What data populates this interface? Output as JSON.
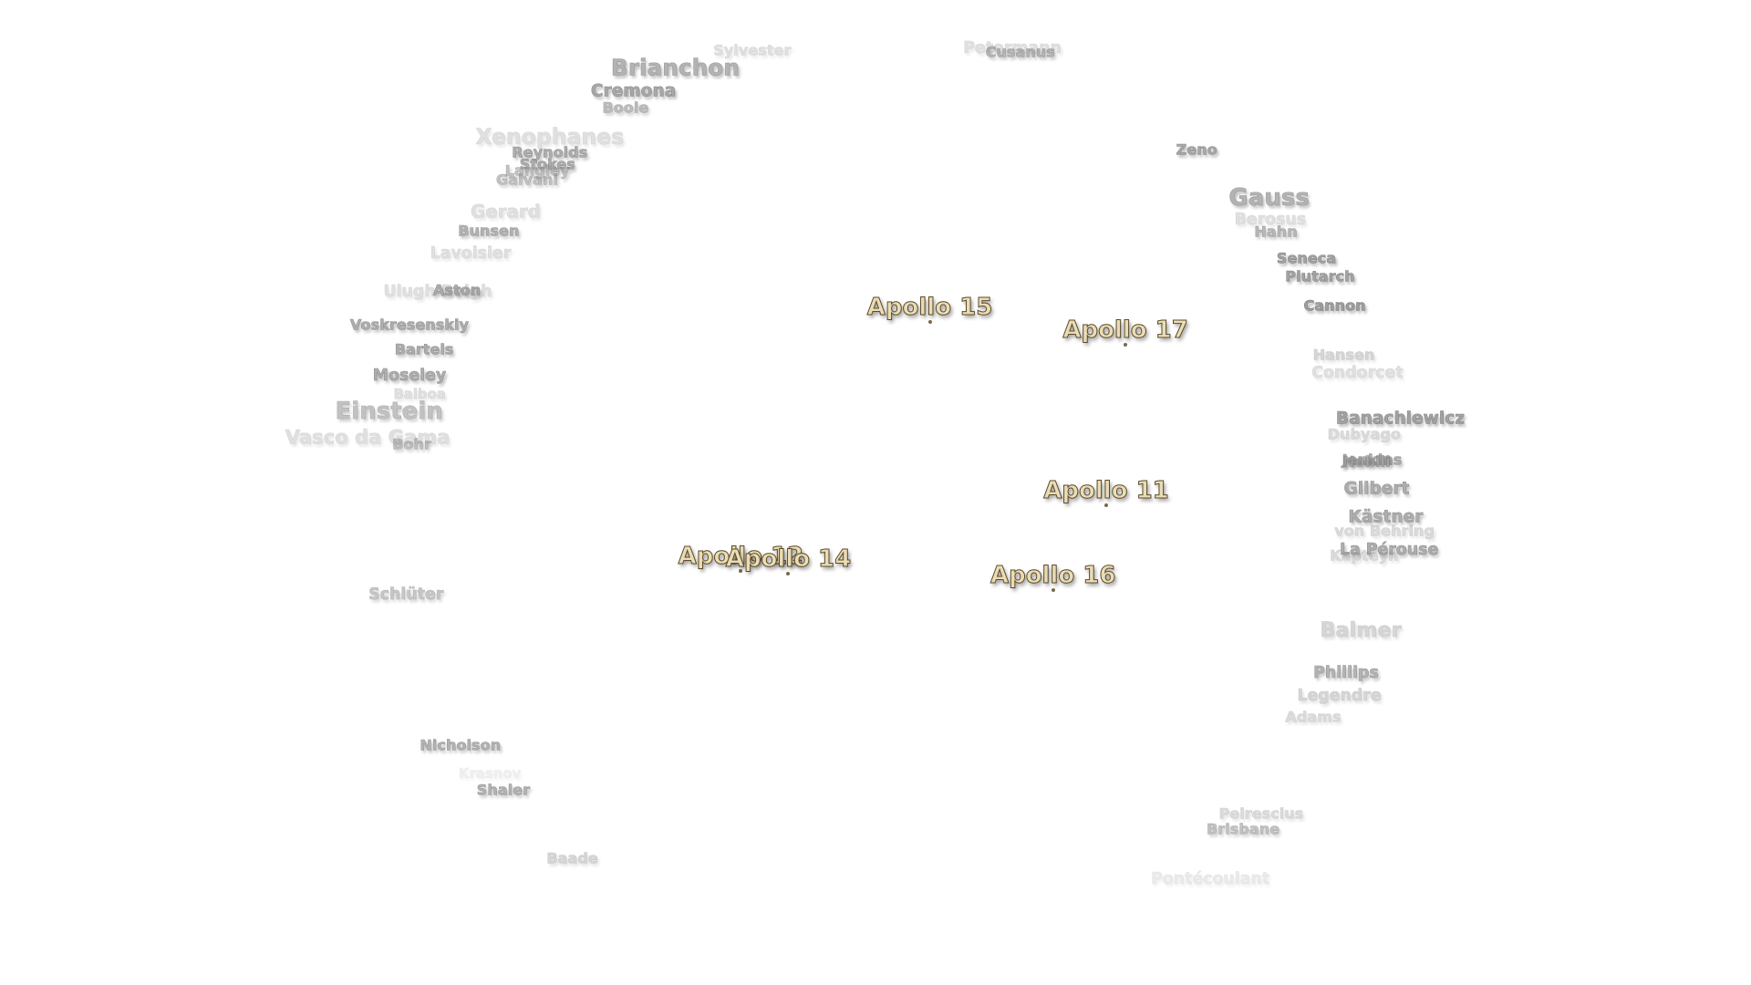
{
  "features": [
    "Sylvester",
    "Petermann",
    "Cusanus",
    "Brianchon",
    "Cremona",
    "Boole",
    "Xenophanes",
    "Reynolds",
    "Stokes",
    "Langley",
    "Galvani",
    "Gerard",
    "Bunsen",
    "Lavoisier",
    "Ulugh Beigh",
    "Aston",
    "Voskresenskiy",
    "Bartels",
    "Moseley",
    "Balboa",
    "Einstein",
    "Vasco da Gama",
    "Bohr",
    "Schlüter",
    "Nicholson",
    "Krasnov",
    "Shaler",
    "Baade",
    "Zeno",
    "Gauss",
    "Berosus",
    "Hahn",
    "Seneca",
    "Plutarch",
    "Cannon",
    "Hansen",
    "Condorcet",
    "Banachiewicz",
    "Dubyago",
    "Jenkins",
    "Nobili",
    "Gilbert",
    "Kästner",
    "von Behring",
    "La Pérouse",
    "Kapteyn",
    "Balmer",
    "Phillips",
    "Legendre",
    "Adams",
    "Peirescius",
    "Brisbane",
    "Pontécoulant"
  ],
  "landing_sites": [
    "Apollo 15",
    "Apollo 17",
    "Apollo 11",
    "Apollo 12",
    "Apollo 14",
    "Apollo 16"
  ]
}
